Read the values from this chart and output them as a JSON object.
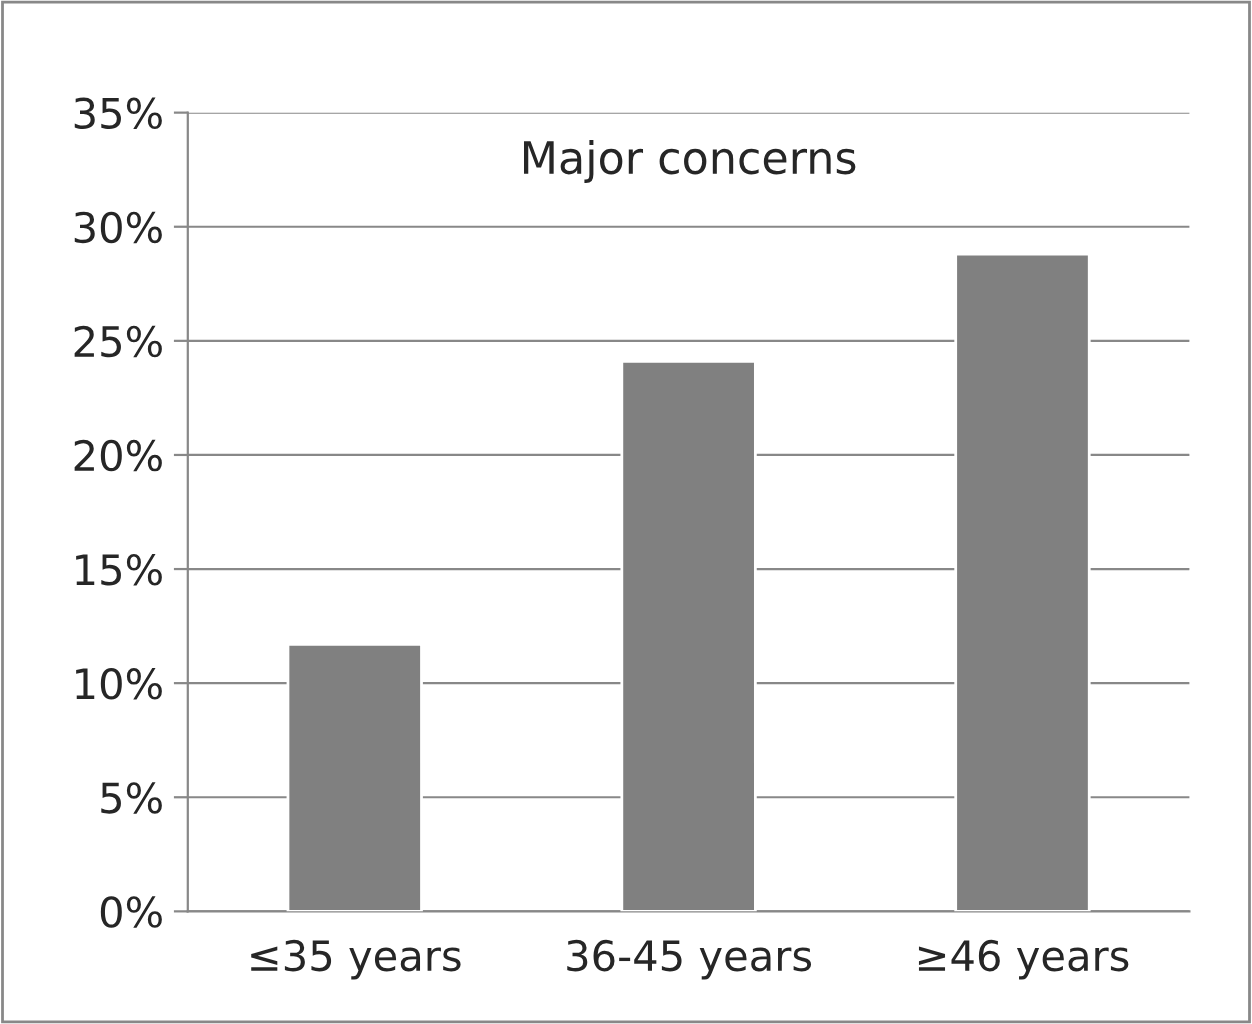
{
  "chart_data": {
    "type": "bar",
    "title": "Major concerns",
    "categories": [
      "≤35 years",
      "36-45 years",
      "≥46 years"
    ],
    "values": [
      11.7,
      24.1,
      28.8
    ],
    "color": "#808080",
    "ylim": [
      0,
      35
    ],
    "yticks": [
      {
        "value": 0,
        "label": "0%"
      },
      {
        "value": 5,
        "label": "5%"
      },
      {
        "value": 10,
        "label": "10%"
      },
      {
        "value": 15,
        "label": "15%"
      },
      {
        "value": 20,
        "label": "20%"
      },
      {
        "value": 25,
        "label": "25%"
      },
      {
        "value": 30,
        "label": "30%"
      },
      {
        "value": 35,
        "label": "35%"
      }
    ],
    "grid": "y",
    "legend": false
  }
}
